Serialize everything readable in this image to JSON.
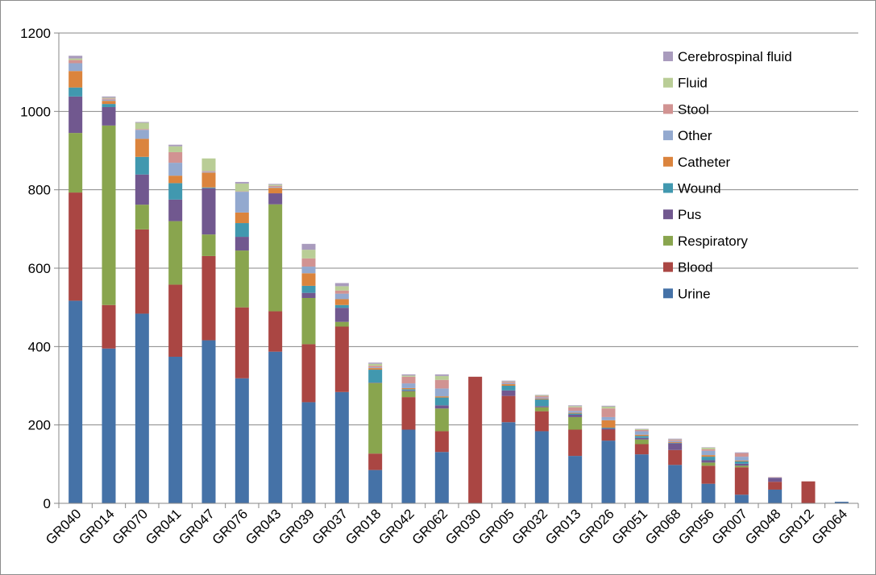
{
  "chart_data": {
    "type": "bar",
    "stacked": true,
    "title": "",
    "xlabel": "",
    "ylabel": "",
    "ylim": [
      0,
      1200
    ],
    "yticks": [
      0,
      200,
      400,
      600,
      800,
      1000,
      1200
    ],
    "grid": true,
    "legend_position": "top-right",
    "categories": [
      "GR040",
      "GR014",
      "GR070",
      "GR041",
      "GR047",
      "GR076",
      "GR043",
      "GR039",
      "GR037",
      "GR018",
      "GR042",
      "GR062",
      "GR030",
      "GR005",
      "GR032",
      "GR013",
      "GR026",
      "GR051",
      "GR068",
      "GR056",
      "GR007",
      "GR048",
      "GR012",
      "GR064"
    ],
    "series": [
      {
        "name": "Urine",
        "color": "#4572a7",
        "values": [
          517,
          395,
          484,
          374,
          416,
          319,
          387,
          258,
          284,
          85,
          188,
          131,
          0,
          207,
          184,
          121,
          160,
          125,
          98,
          50,
          22,
          35,
          0,
          4
        ]
      },
      {
        "name": "Blood",
        "color": "#aa4643",
        "values": [
          276,
          111,
          215,
          184,
          215,
          181,
          103,
          148,
          167,
          42,
          83,
          53,
          323,
          67,
          51,
          67,
          28,
          26,
          38,
          46,
          70,
          20,
          56,
          0
        ]
      },
      {
        "name": "Respiratory",
        "color": "#89a54e",
        "values": [
          152,
          458,
          63,
          162,
          55,
          145,
          273,
          118,
          12,
          180,
          15,
          58,
          0,
          0,
          10,
          32,
          0,
          12,
          0,
          8,
          4,
          0,
          0,
          0
        ]
      },
      {
        "name": "Pus",
        "color": "#71588f",
        "values": [
          93,
          47,
          77,
          55,
          118,
          35,
          28,
          13,
          36,
          1,
          2,
          8,
          0,
          14,
          3,
          6,
          3,
          4,
          17,
          6,
          5,
          10,
          0,
          0
        ]
      },
      {
        "name": "Wound",
        "color": "#4198af",
        "values": [
          23,
          8,
          45,
          42,
          2,
          35,
          0,
          18,
          7,
          33,
          3,
          20,
          0,
          12,
          17,
          3,
          2,
          5,
          1,
          9,
          6,
          0,
          0,
          0
        ]
      },
      {
        "name": "Catheter",
        "color": "#db843d",
        "values": [
          42,
          8,
          46,
          19,
          38,
          27,
          14,
          32,
          15,
          4,
          3,
          3,
          0,
          4,
          2,
          2,
          19,
          3,
          2,
          4,
          2,
          0,
          0,
          0
        ]
      },
      {
        "name": "Other",
        "color": "#93a9cf",
        "values": [
          20,
          3,
          23,
          33,
          2,
          53,
          2,
          17,
          14,
          2,
          12,
          20,
          0,
          3,
          3,
          5,
          8,
          9,
          3,
          11,
          10,
          1,
          0,
          0
        ]
      },
      {
        "name": "Stool",
        "color": "#d19392",
        "values": [
          8,
          3,
          2,
          27,
          2,
          1,
          3,
          21,
          8,
          4,
          17,
          22,
          0,
          3,
          4,
          9,
          22,
          3,
          3,
          4,
          9,
          1,
          0,
          0
        ]
      },
      {
        "name": "Fluid",
        "color": "#b9cd96",
        "values": [
          4,
          2,
          16,
          15,
          32,
          20,
          3,
          22,
          11,
          5,
          3,
          10,
          0,
          1,
          2,
          3,
          5,
          2,
          1,
          4,
          0,
          0,
          0,
          0
        ]
      },
      {
        "name": "Cerebrospinal fluid",
        "color": "#a99bbd",
        "values": [
          7,
          3,
          2,
          4,
          0,
          4,
          2,
          15,
          8,
          3,
          3,
          4,
          0,
          2,
          1,
          2,
          2,
          1,
          2,
          1,
          2,
          0,
          0,
          0
        ]
      }
    ]
  }
}
